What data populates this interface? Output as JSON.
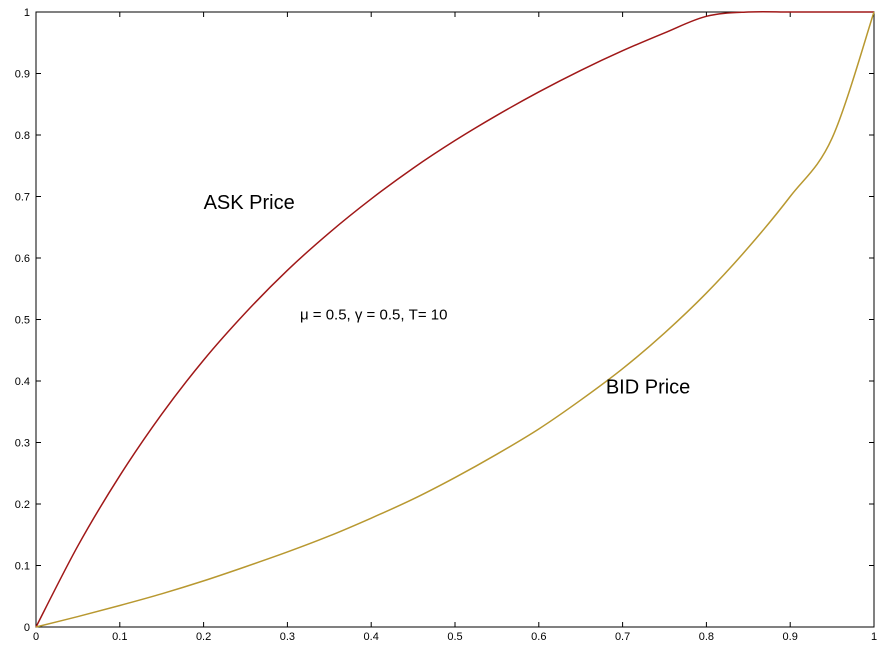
{
  "chart_data": {
    "type": "line",
    "title": "",
    "xlabel": "",
    "ylabel": "",
    "xlim": [
      0,
      1
    ],
    "ylim": [
      0,
      1
    ],
    "grid": false,
    "legend": "none",
    "x_ticks": [
      "0",
      "0.1",
      "0.2",
      "0.3",
      "0.4",
      "0.5",
      "0.6",
      "0.7",
      "0.8",
      "0.9",
      "1"
    ],
    "y_ticks": [
      "0",
      "0.1",
      "0.2",
      "0.3",
      "0.4",
      "0.5",
      "0.6",
      "0.7",
      "0.8",
      "0.9",
      "1"
    ],
    "x": [
      0,
      0.05,
      0.1,
      0.15,
      0.2,
      0.25,
      0.3,
      0.35,
      0.4,
      0.45,
      0.5,
      0.55,
      0.6,
      0.65,
      0.7,
      0.75,
      0.8,
      0.85,
      0.9,
      0.95,
      1
    ],
    "series": [
      {
        "values": [
          0,
          0.132,
          0.246,
          0.346,
          0.434,
          0.511,
          0.58,
          0.641,
          0.696,
          0.746,
          0.791,
          0.832,
          0.87,
          0.905,
          0.937,
          0.966,
          0.993,
          1.0,
          1.0,
          1.0,
          1.0
        ],
        "color": "#a01818"
      },
      {
        "values": [
          0,
          0.017,
          0.035,
          0.054,
          0.075,
          0.098,
          0.122,
          0.148,
          0.177,
          0.208,
          0.243,
          0.281,
          0.322,
          0.369,
          0.42,
          0.478,
          0.543,
          0.617,
          0.7,
          0.795,
          1.0
        ],
        "color": "#b89830"
      }
    ],
    "annotations": [
      {
        "text": "ASK Price",
        "x": 0.2,
        "y": 0.68
      },
      {
        "text": "μ = 0.5, γ = 0.5, T= 10",
        "x": 0.315,
        "y": 0.5
      },
      {
        "text": "BID Price",
        "x": 0.68,
        "y": 0.38
      }
    ]
  }
}
